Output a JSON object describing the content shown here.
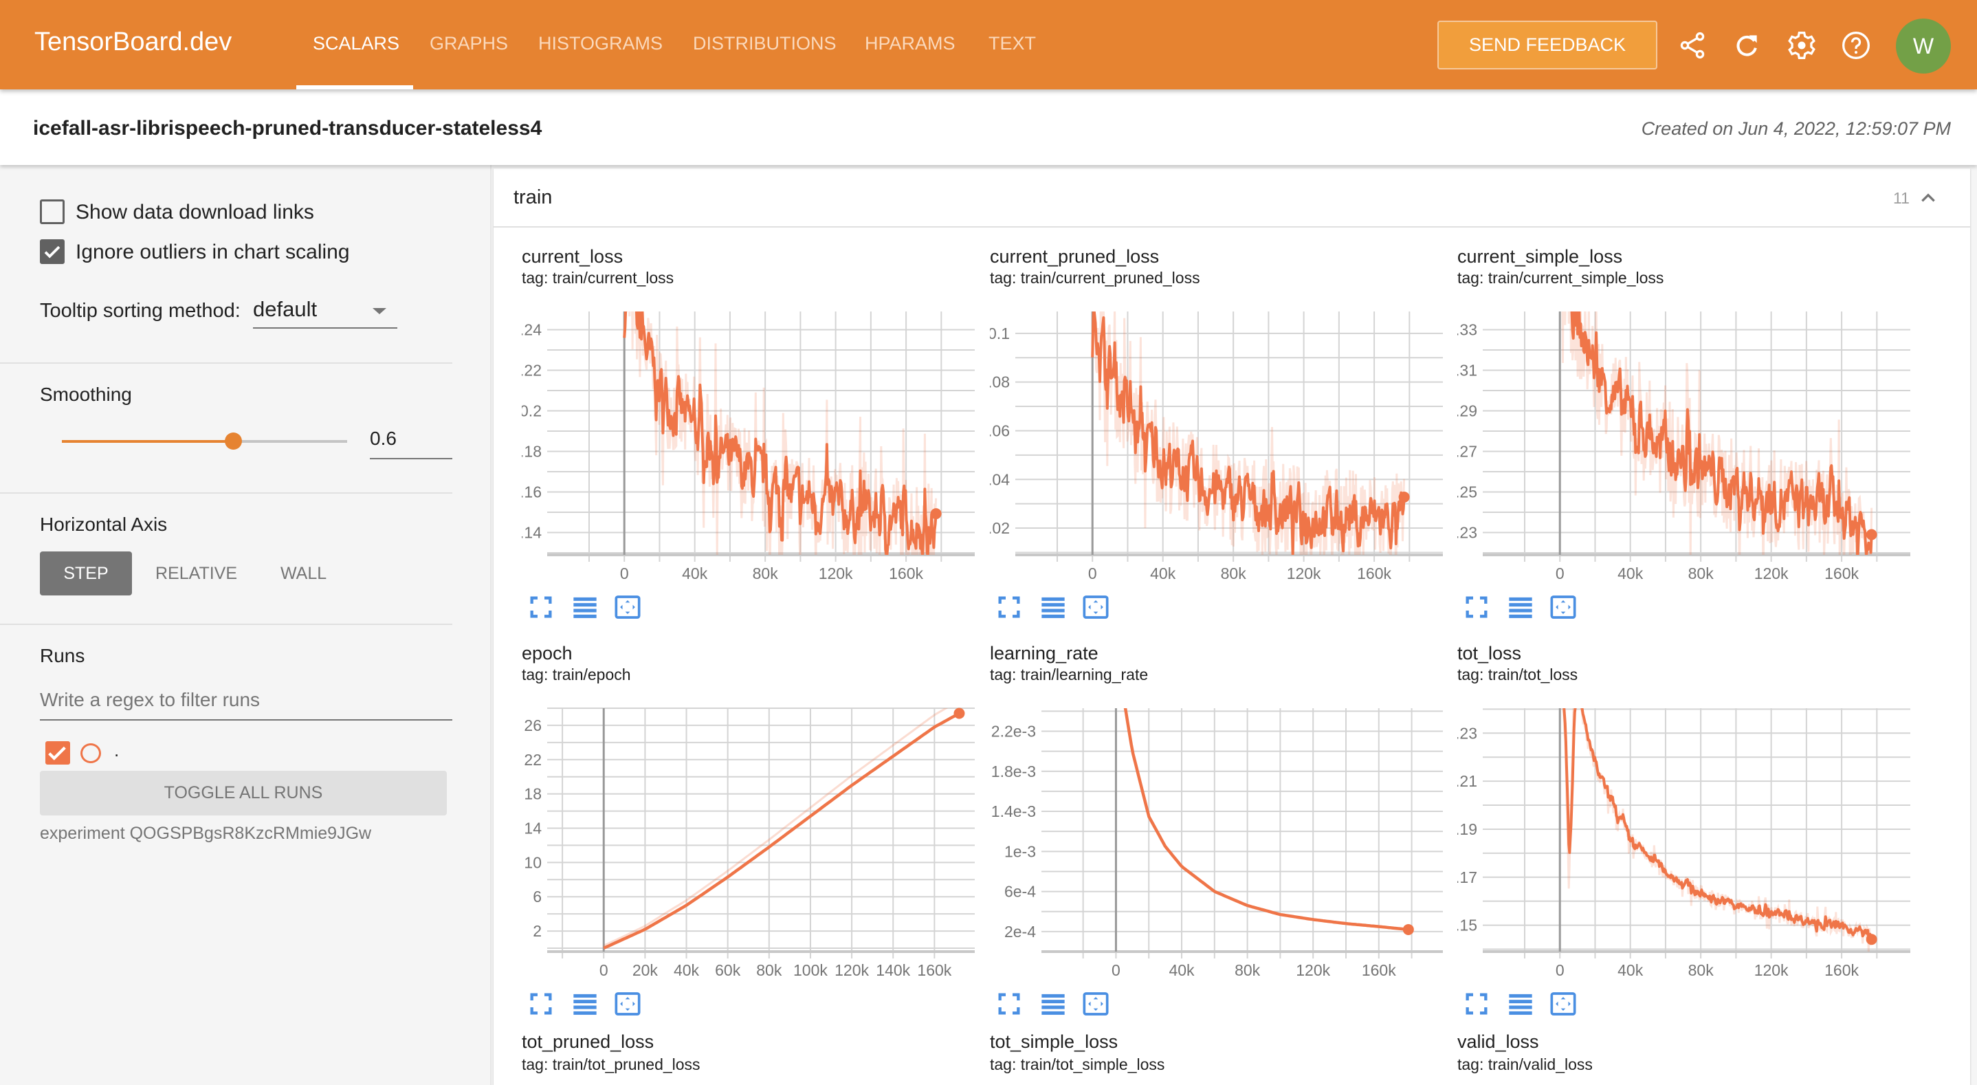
{
  "header": {
    "brand": "TensorBoard.dev",
    "tabs": [
      {
        "label": "SCALARS",
        "active": true
      },
      {
        "label": "GRAPHS"
      },
      {
        "label": "HISTOGRAMS"
      },
      {
        "label": "DISTRIBUTIONS"
      },
      {
        "label": "HPARAMS"
      },
      {
        "label": "TEXT"
      }
    ],
    "feedback_label": "SEND FEEDBACK",
    "icons": [
      "share-icon",
      "refresh-icon",
      "settings-gear-icon",
      "help-icon"
    ],
    "avatar_letter": "W",
    "colors": {
      "brand": "#e68331",
      "avatar": "#73a047"
    }
  },
  "titlebar": {
    "experiment_name": "icefall-asr-librispeech-pruned-transducer-stateless4",
    "created": "Created on Jun 4, 2022, 12:59:07 PM"
  },
  "sidebar": {
    "show_download_links": {
      "label": "Show data download links",
      "checked": false
    },
    "ignore_outliers": {
      "label": "Ignore outliers in chart scaling",
      "checked": true
    },
    "tooltip_sorting": {
      "label": "Tooltip sorting method:",
      "value": "default"
    },
    "smoothing": {
      "label": "Smoothing",
      "value": "0.6",
      "fraction": 0.6
    },
    "horizontal_axis": {
      "label": "Horizontal Axis",
      "options": [
        "STEP",
        "RELATIVE",
        "WALL"
      ],
      "selected": "STEP"
    },
    "runs": {
      "label": "Runs",
      "filter_placeholder": "Write a regex to filter runs",
      "items": [
        {
          "name": ".",
          "checked": true,
          "color": "#ef7548"
        }
      ],
      "toggle_all_label": "TOGGLE ALL RUNS",
      "experiment_label": "experiment QOGSPBgsR8KzcRMmie9JGw"
    }
  },
  "main": {
    "group_name": "train",
    "group_count": "11",
    "more_cards": [
      {
        "title": "tot_pruned_loss",
        "tag": "tag: train/tot_pruned_loss"
      },
      {
        "title": "tot_simple_loss",
        "tag": "tag: train/tot_simple_loss"
      },
      {
        "title": "valid_loss",
        "tag": "tag: train/valid_loss"
      }
    ],
    "chart_icons": [
      "fullscreen-icon",
      "toggle-log-scale-icon",
      "fit-domain-icon"
    ]
  },
  "chart_data": [
    {
      "type": "line",
      "title": "current_loss",
      "tag": "tag: train/current_loss",
      "xlim": [
        -36000,
        199000
      ],
      "ylim": [
        0.129,
        0.249
      ],
      "xticks": [
        0,
        40000,
        80000,
        120000,
        160000
      ],
      "xtick_labels": [
        "0",
        "40k",
        "80k",
        "120k",
        "160k"
      ],
      "yticks": [
        0.14,
        0.16,
        0.18,
        0.2,
        0.22,
        0.24
      ],
      "ytick_labels": [
        "0.14",
        "0.16",
        "0.18",
        "0.2",
        "0.22",
        "0.24"
      ],
      "x": [
        0,
        10000,
        20000,
        40000,
        60000,
        80000,
        100000,
        120000,
        140000,
        160000,
        177000
      ],
      "y": [
        0.26,
        0.235,
        0.21,
        0.19,
        0.175,
        0.163,
        0.157,
        0.152,
        0.148,
        0.146,
        0.14
      ],
      "color": "#ef7548"
    },
    {
      "type": "line",
      "title": "current_pruned_loss",
      "tag": "tag: train/current_pruned_loss",
      "xlim": [
        -36000,
        199000
      ],
      "ylim": [
        0.009,
        0.109
      ],
      "xticks": [
        0,
        40000,
        80000,
        120000,
        160000
      ],
      "xtick_labels": [
        "0",
        "40k",
        "80k",
        "120k",
        "160k"
      ],
      "yticks": [
        0.02,
        0.04,
        0.06,
        0.08,
        0.1
      ],
      "ytick_labels": [
        "0.02",
        "0.04",
        "0.06",
        "0.08",
        "0.1"
      ],
      "x": [
        0,
        10000,
        20000,
        40000,
        60000,
        80000,
        100000,
        120000,
        140000,
        160000,
        177000
      ],
      "y": [
        0.11,
        0.085,
        0.065,
        0.048,
        0.038,
        0.032,
        0.028,
        0.026,
        0.025,
        0.024,
        0.023
      ],
      "color": "#ef7548"
    },
    {
      "type": "line",
      "title": "current_simple_loss",
      "tag": "tag: train/current_simple_loss",
      "xlim": [
        -36000,
        199000
      ],
      "ylim": [
        0.219,
        0.339
      ],
      "xticks": [
        0,
        40000,
        80000,
        120000,
        160000
      ],
      "xtick_labels": [
        "0",
        "40k",
        "80k",
        "120k",
        "160k"
      ],
      "yticks": [
        0.23,
        0.25,
        0.27,
        0.29,
        0.31,
        0.33
      ],
      "ytick_labels": [
        "0.23",
        "0.25",
        "0.27",
        "0.29",
        "0.31",
        "0.33"
      ],
      "x": [
        0,
        10000,
        20000,
        40000,
        60000,
        80000,
        100000,
        120000,
        140000,
        160000,
        177000
      ],
      "y": [
        0.36,
        0.33,
        0.31,
        0.285,
        0.27,
        0.26,
        0.252,
        0.247,
        0.243,
        0.24,
        0.231
      ],
      "color": "#ef7548"
    },
    {
      "type": "line",
      "title": "epoch",
      "tag": "tag: train/epoch",
      "xlim": [
        -20700,
        179500
      ],
      "ylim": [
        -0.4,
        28
      ],
      "xticks": [
        0,
        20000,
        40000,
        60000,
        80000,
        100000,
        120000,
        140000,
        160000
      ],
      "xtick_labels": [
        "0",
        "20k",
        "40k",
        "60k",
        "80k",
        "100k",
        "120k",
        "140k",
        "160k"
      ],
      "yticks": [
        2,
        6,
        10,
        14,
        18,
        22,
        26
      ],
      "ytick_labels": [
        "2",
        "6",
        "10",
        "14",
        "18",
        "22",
        "26"
      ],
      "x": [
        0,
        20000,
        40000,
        60000,
        80000,
        100000,
        120000,
        140000,
        160000,
        172000
      ],
      "y": [
        0,
        2.2,
        5.0,
        8.3,
        11.8,
        15.4,
        19.0,
        22.4,
        25.8,
        27.4
      ],
      "color": "#ef7548"
    },
    {
      "type": "line",
      "title": "learning_rate",
      "tag": "tag: train/learning_rate",
      "xlim": [
        -37000,
        199000
      ],
      "ylim": [
        0,
        0.00243
      ],
      "xticks": [
        0,
        40000,
        80000,
        120000,
        160000
      ],
      "xtick_labels": [
        "0",
        "40k",
        "80k",
        "120k",
        "160k"
      ],
      "yticks": [
        0.0002,
        0.0006,
        0.001,
        0.0014,
        0.0018,
        0.0022
      ],
      "ytick_labels": [
        "2e-4",
        "6e-4",
        "1e-3",
        "1.4e-3",
        "1.8e-3",
        "2.2e-3"
      ],
      "x": [
        5000,
        10000,
        20000,
        30000,
        40000,
        60000,
        80000,
        100000,
        120000,
        140000,
        160000,
        178000
      ],
      "y": [
        0.0025,
        0.002,
        0.00135,
        0.00105,
        0.00085,
        0.0006,
        0.00046,
        0.00037,
        0.00032,
        0.00028,
        0.00025,
        0.00022
      ],
      "color": "#ef7548"
    },
    {
      "type": "line",
      "title": "tot_loss",
      "tag": "tag: train/tot_loss",
      "xlim": [
        -36000,
        199000
      ],
      "ylim": [
        0.139,
        0.2404
      ],
      "xticks": [
        0,
        40000,
        80000,
        120000,
        160000
      ],
      "xtick_labels": [
        "0",
        "40k",
        "80k",
        "120k",
        "160k"
      ],
      "yticks": [
        0.15,
        0.17,
        0.19,
        0.21,
        0.23
      ],
      "ytick_labels": [
        "0.15",
        "0.17",
        "0.19",
        "0.21",
        "0.23"
      ],
      "x": [
        0,
        3000,
        5000,
        8000,
        20000,
        40000,
        60000,
        80000,
        100000,
        120000,
        140000,
        160000,
        177000
      ],
      "y": [
        0.26,
        0.23,
        0.165,
        0.25,
        0.215,
        0.185,
        0.172,
        0.163,
        0.158,
        0.155,
        0.152,
        0.149,
        0.146
      ],
      "color": "#ef7548"
    }
  ]
}
